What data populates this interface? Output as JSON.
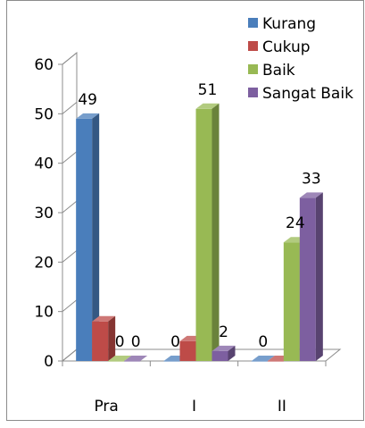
{
  "chart_data": {
    "type": "bar",
    "title": "",
    "xlabel": "",
    "ylabel": "",
    "categories": [
      "Pra",
      "I",
      "II"
    ],
    "ylim": [
      0,
      60
    ],
    "yticks": [
      0,
      10,
      20,
      30,
      40,
      50,
      60
    ],
    "grid": false,
    "legend_position": "top-right",
    "series": [
      {
        "name": "Kurang",
        "values": [
          49,
          0,
          0
        ],
        "color": "#4a7ebb"
      },
      {
        "name": "Cukup",
        "values": [
          8,
          4,
          0
        ],
        "color": "#be4b48"
      },
      {
        "name": "Baik",
        "values": [
          0,
          51,
          24
        ],
        "color": "#98b954"
      },
      {
        "name": "Sangat Baik",
        "values": [
          0,
          2,
          33
        ],
        "color": "#7d5fa0"
      }
    ],
    "data_labels": [
      {
        "category": "Pra",
        "series": "Kurang",
        "text": "49"
      },
      {
        "category": "Pra",
        "series": "Baik",
        "text": "0"
      },
      {
        "category": "Pra",
        "series": "Sangat Baik",
        "text": "0"
      },
      {
        "category": "I",
        "series": "Kurang",
        "text": "0"
      },
      {
        "category": "I",
        "series": "Baik",
        "text": "51"
      },
      {
        "category": "I",
        "series": "Sangat Baik",
        "text": "2"
      },
      {
        "category": "II",
        "series": "Kurang",
        "text": "0"
      },
      {
        "category": "II",
        "series": "Baik",
        "text": "24"
      },
      {
        "category": "II",
        "series": "Sangat Baik",
        "text": "33"
      }
    ]
  }
}
